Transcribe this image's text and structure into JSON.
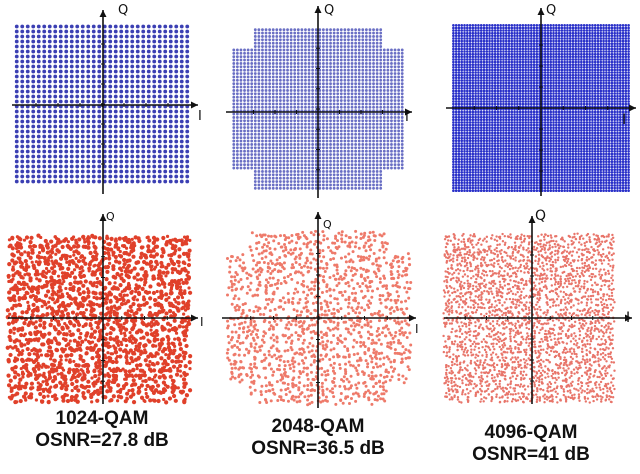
{
  "panels": [
    {
      "constellation": "1024-QAM",
      "osnr": "",
      "axes": {
        "horizontal": "I",
        "vertical": "Q"
      },
      "points_per_side": 32,
      "shape": "square",
      "color": "#3b3fb3",
      "style": "clean"
    },
    {
      "constellation": "2048-QAM",
      "osnr": "",
      "axes": {
        "horizontal": "I",
        "vertical": "Q"
      },
      "points_per_side": 48,
      "shape": "cross",
      "color": "#6a6fc4",
      "style": "clean"
    },
    {
      "constellation": "4096-QAM",
      "osnr": "",
      "axes": {
        "horizontal": "I",
        "vertical": "Q"
      },
      "points_per_side": 64,
      "shape": "square",
      "color": "#2a31c9",
      "style": "clean"
    },
    {
      "constellation": "1024-QAM",
      "osnr": "OSNR=27.8 dB",
      "axes": {
        "horizontal": "I",
        "vertical": "Q"
      },
      "points_per_side": 32,
      "shape": "square",
      "color": "#e0402a",
      "style": "noisy"
    },
    {
      "constellation": "2048-QAM",
      "osnr": "OSNR=36.5 dB",
      "axes": {
        "horizontal": "I",
        "vertical": "Q"
      },
      "points_per_side": 48,
      "shape": "cross",
      "color": "#ee7a6a",
      "style": "noisy"
    },
    {
      "constellation": "4096-QAM",
      "osnr": "OSNR=41 dB",
      "axes": {
        "horizontal": "I",
        "vertical": "Q"
      },
      "points_per_side": 64,
      "shape": "square",
      "color": "#e8756a",
      "style": "noisy"
    }
  ],
  "captions": [
    {
      "line1": "1024-QAM",
      "line2": "OSNR=27.8 dB"
    },
    {
      "line1": "2048-QAM",
      "line2": "OSNR=36.5 dB"
    },
    {
      "line1": "4096-QAM",
      "line2": "OSNR=41 dB"
    }
  ],
  "colors": {
    "axis": "#111111",
    "background": "#ffffff"
  }
}
